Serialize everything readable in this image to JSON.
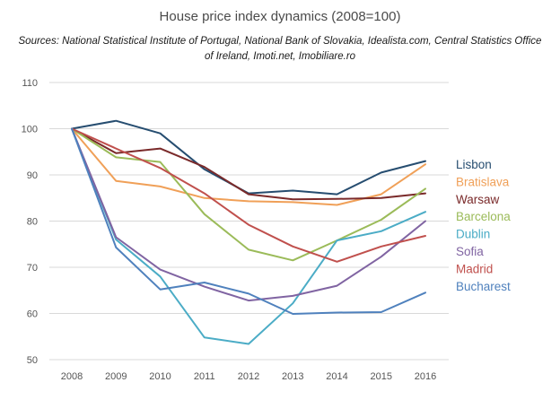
{
  "chart_data": {
    "type": "line",
    "title": "House price index dynamics (2008=100)",
    "subtitle": "Sources: National  Statistical  Institute of Portugal, National Bank of Slovakia, Idealista.com, Central Statistics  Office of Ireland, Imoti.net, Imobiliare.ro",
    "xlabel": "",
    "ylabel": "",
    "x": [
      "2008",
      "2009",
      "2010",
      "2011",
      "2012",
      "2013",
      "2014",
      "2015",
      "2016"
    ],
    "ylim": [
      50,
      110
    ],
    "yticks": [
      50,
      60,
      70,
      80,
      90,
      100,
      110
    ],
    "grid": "horizontal",
    "legend": "right",
    "series": [
      {
        "name": "Lisbon",
        "color": "#264d70",
        "values": [
          100,
          101.7,
          99.0,
          91.2,
          86.0,
          86.6,
          85.8,
          90.5,
          93.0
        ]
      },
      {
        "name": "Bratislava",
        "color": "#f0a058",
        "values": [
          100,
          88.7,
          87.5,
          85.0,
          84.3,
          84.1,
          83.5,
          85.8,
          92.3
        ]
      },
      {
        "name": "Warsaw",
        "color": "#7a2a2a",
        "values": [
          100,
          94.7,
          95.7,
          91.7,
          85.8,
          84.7,
          84.8,
          85.0,
          86.0
        ]
      },
      {
        "name": "Barcelona",
        "color": "#9bbb59",
        "values": [
          100,
          93.8,
          92.8,
          81.5,
          73.8,
          71.5,
          75.8,
          80.3,
          87.0
        ]
      },
      {
        "name": "Dublin",
        "color": "#4bacc6",
        "values": [
          100,
          76.0,
          68.0,
          54.8,
          53.4,
          62.2,
          75.8,
          77.8,
          82.0
        ]
      },
      {
        "name": "Sofia",
        "color": "#8064a2",
        "values": [
          100,
          76.5,
          69.5,
          65.8,
          62.8,
          63.8,
          66.0,
          72.3,
          80.0
        ]
      },
      {
        "name": "Madrid",
        "color": "#c0504d",
        "values": [
          100,
          95.7,
          91.5,
          86.0,
          79.2,
          74.5,
          71.2,
          74.5,
          76.8
        ]
      },
      {
        "name": "Bucharest",
        "color": "#4f81bd",
        "values": [
          100,
          74.3,
          65.2,
          66.7,
          64.3,
          59.9,
          60.2,
          60.3,
          64.5
        ]
      }
    ]
  }
}
